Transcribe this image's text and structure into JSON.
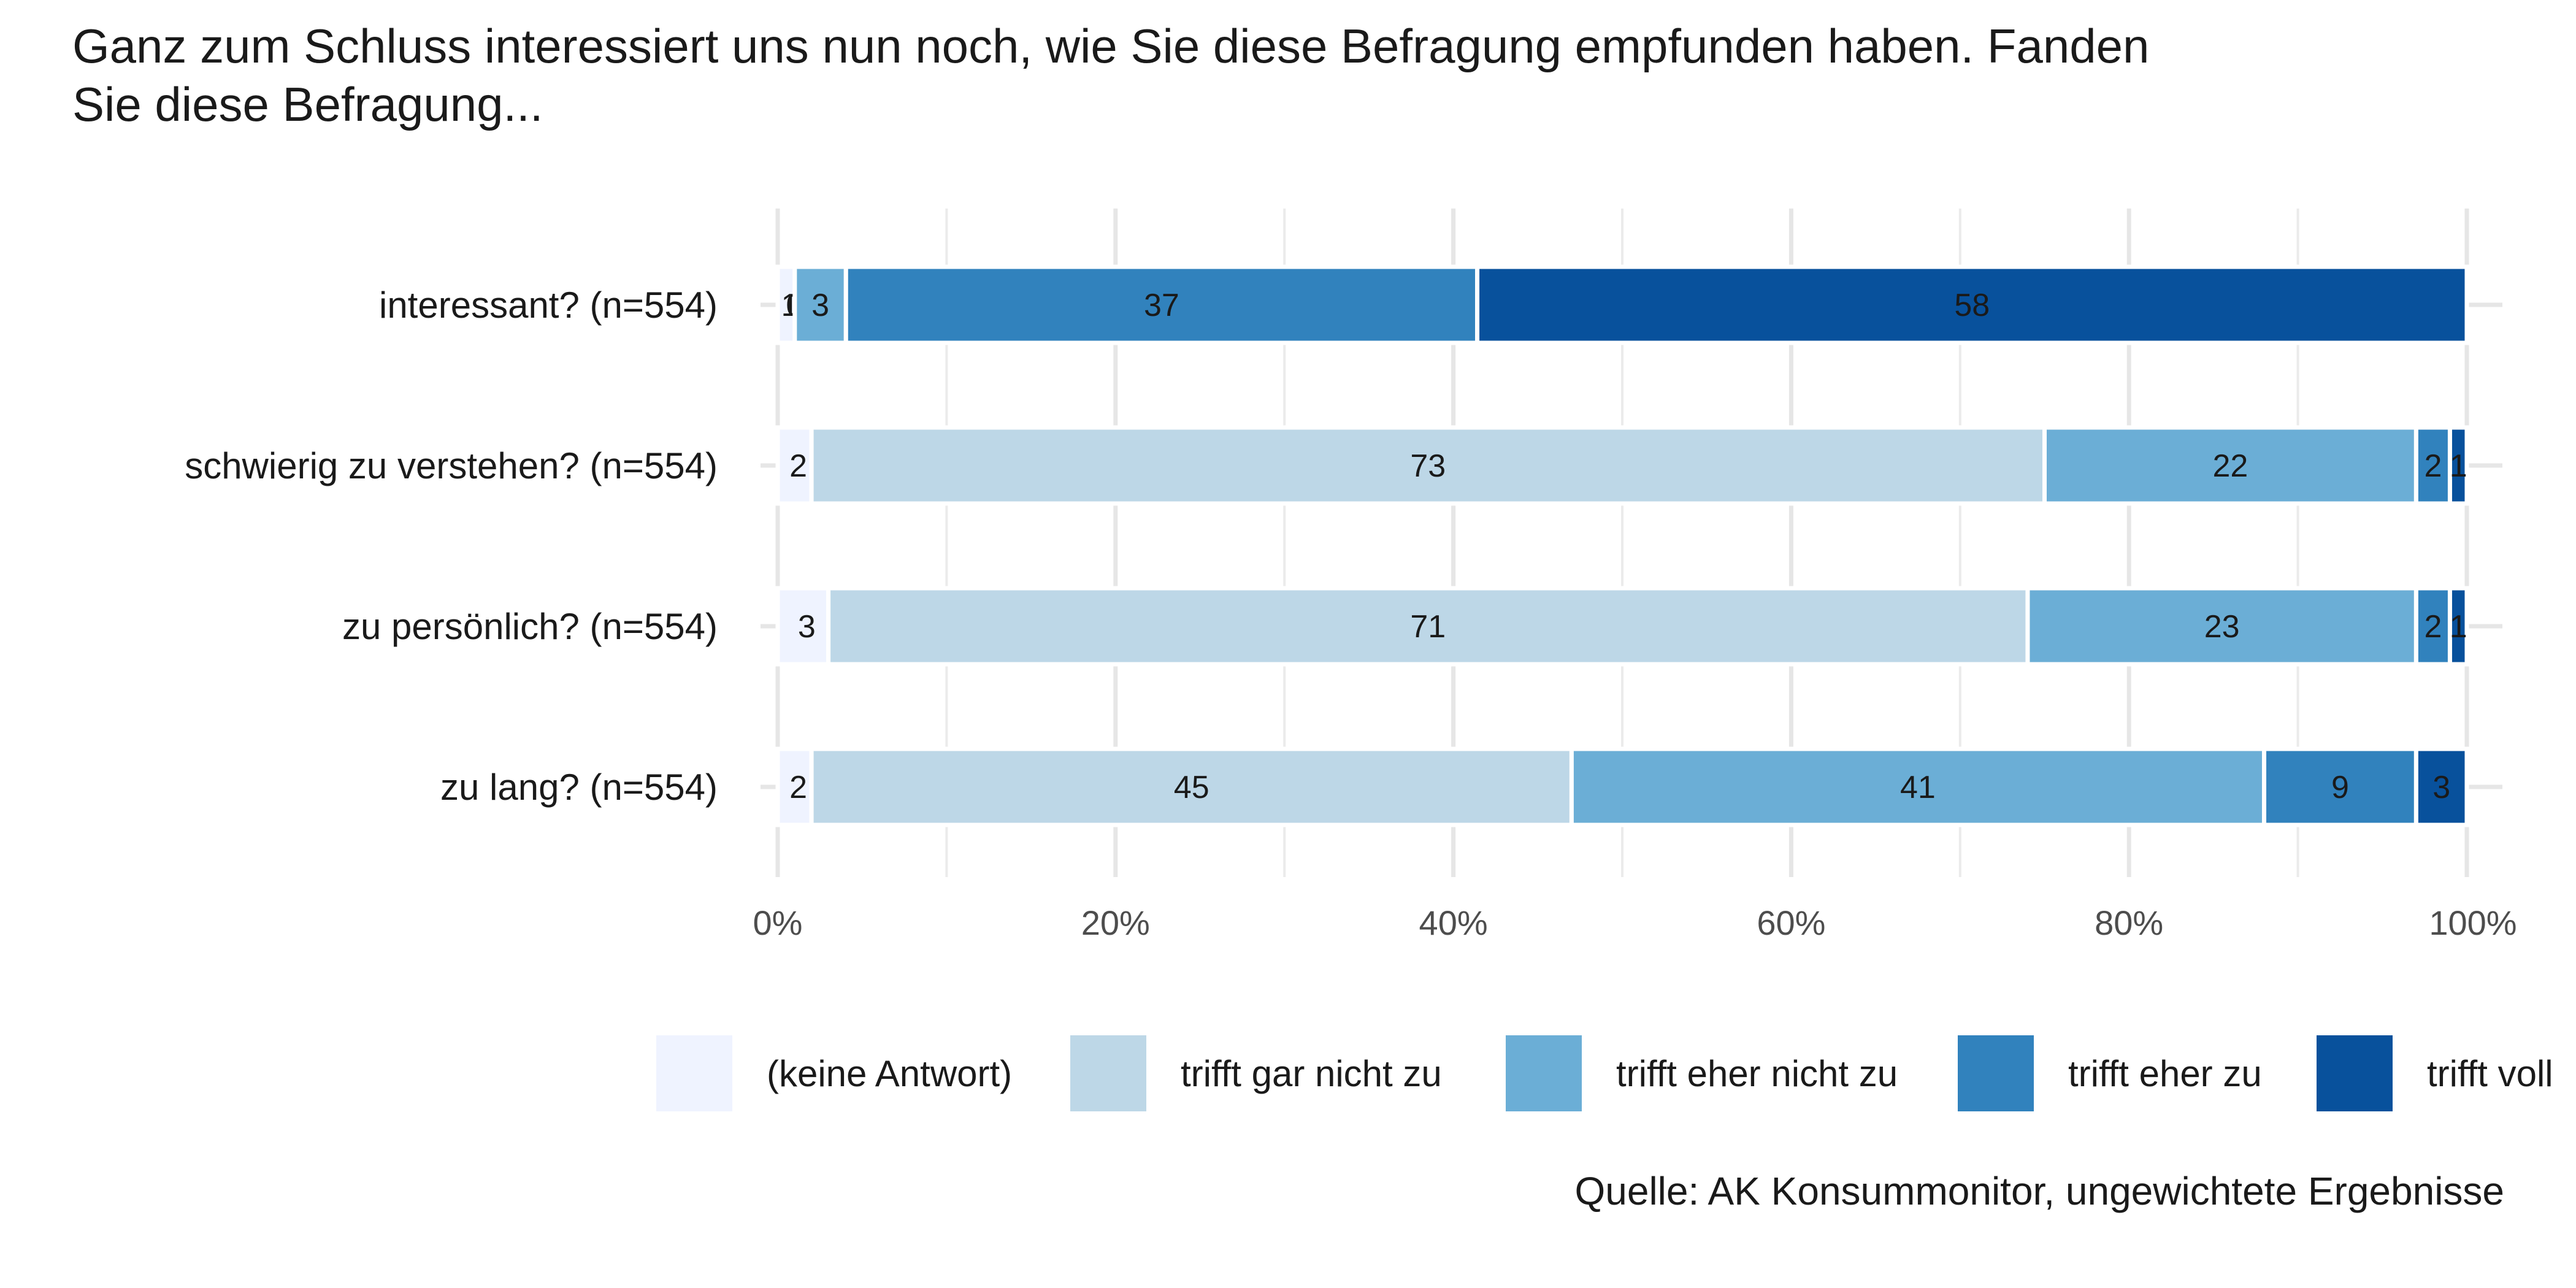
{
  "chart_data": {
    "type": "bar",
    "orientation": "horizontal",
    "stacked": true,
    "title": "Ganz zum Schluss interessiert uns nun noch, wie Sie diese Befragung empfunden haben. Fanden Sie diese Befragung...",
    "title_lines": [
      "Ganz zum Schluss interessiert uns nun noch, wie Sie diese Befragung empfunden haben. Fanden",
      "Sie diese Befragung..."
    ],
    "categories": [
      "interessant? (n=554)",
      "schwierig zu verstehen? (n=554)",
      "zu persönlich? (n=554)",
      "zu lang? (n=554)"
    ],
    "series": [
      {
        "name": "(keine Antwort)",
        "color": "#eff3ff",
        "values": [
          1,
          2,
          3,
          2
        ]
      },
      {
        "name": "trifft gar nicht zu",
        "color": "#bdd7e7",
        "values": [
          0,
          73,
          71,
          45
        ]
      },
      {
        "name": "trifft eher nicht zu",
        "color": "#6baed6",
        "values": [
          3,
          22,
          23,
          41
        ]
      },
      {
        "name": "trifft eher zu",
        "color": "#3182bd",
        "values": [
          37,
          2,
          2,
          9
        ]
      },
      {
        "name": "trifft voll zu",
        "color": "#08519c",
        "values": [
          58,
          1,
          1,
          3
        ]
      }
    ],
    "x_ticks": [
      "0%",
      "20%",
      "40%",
      "60%",
      "80%",
      "100%"
    ],
    "xlim": [
      0,
      100
    ],
    "xlabel": "",
    "ylabel": "",
    "grid": true,
    "legend_position": "bottom",
    "legend_visible_labels": [
      "(keine Antwort)",
      "trifft gar nicht zu",
      "trifft eher nicht zu",
      "trifft eher zu",
      "trifft voll"
    ],
    "caption": "Quelle: AK Konsummonitor, ungewichtete Ergebnisse"
  }
}
